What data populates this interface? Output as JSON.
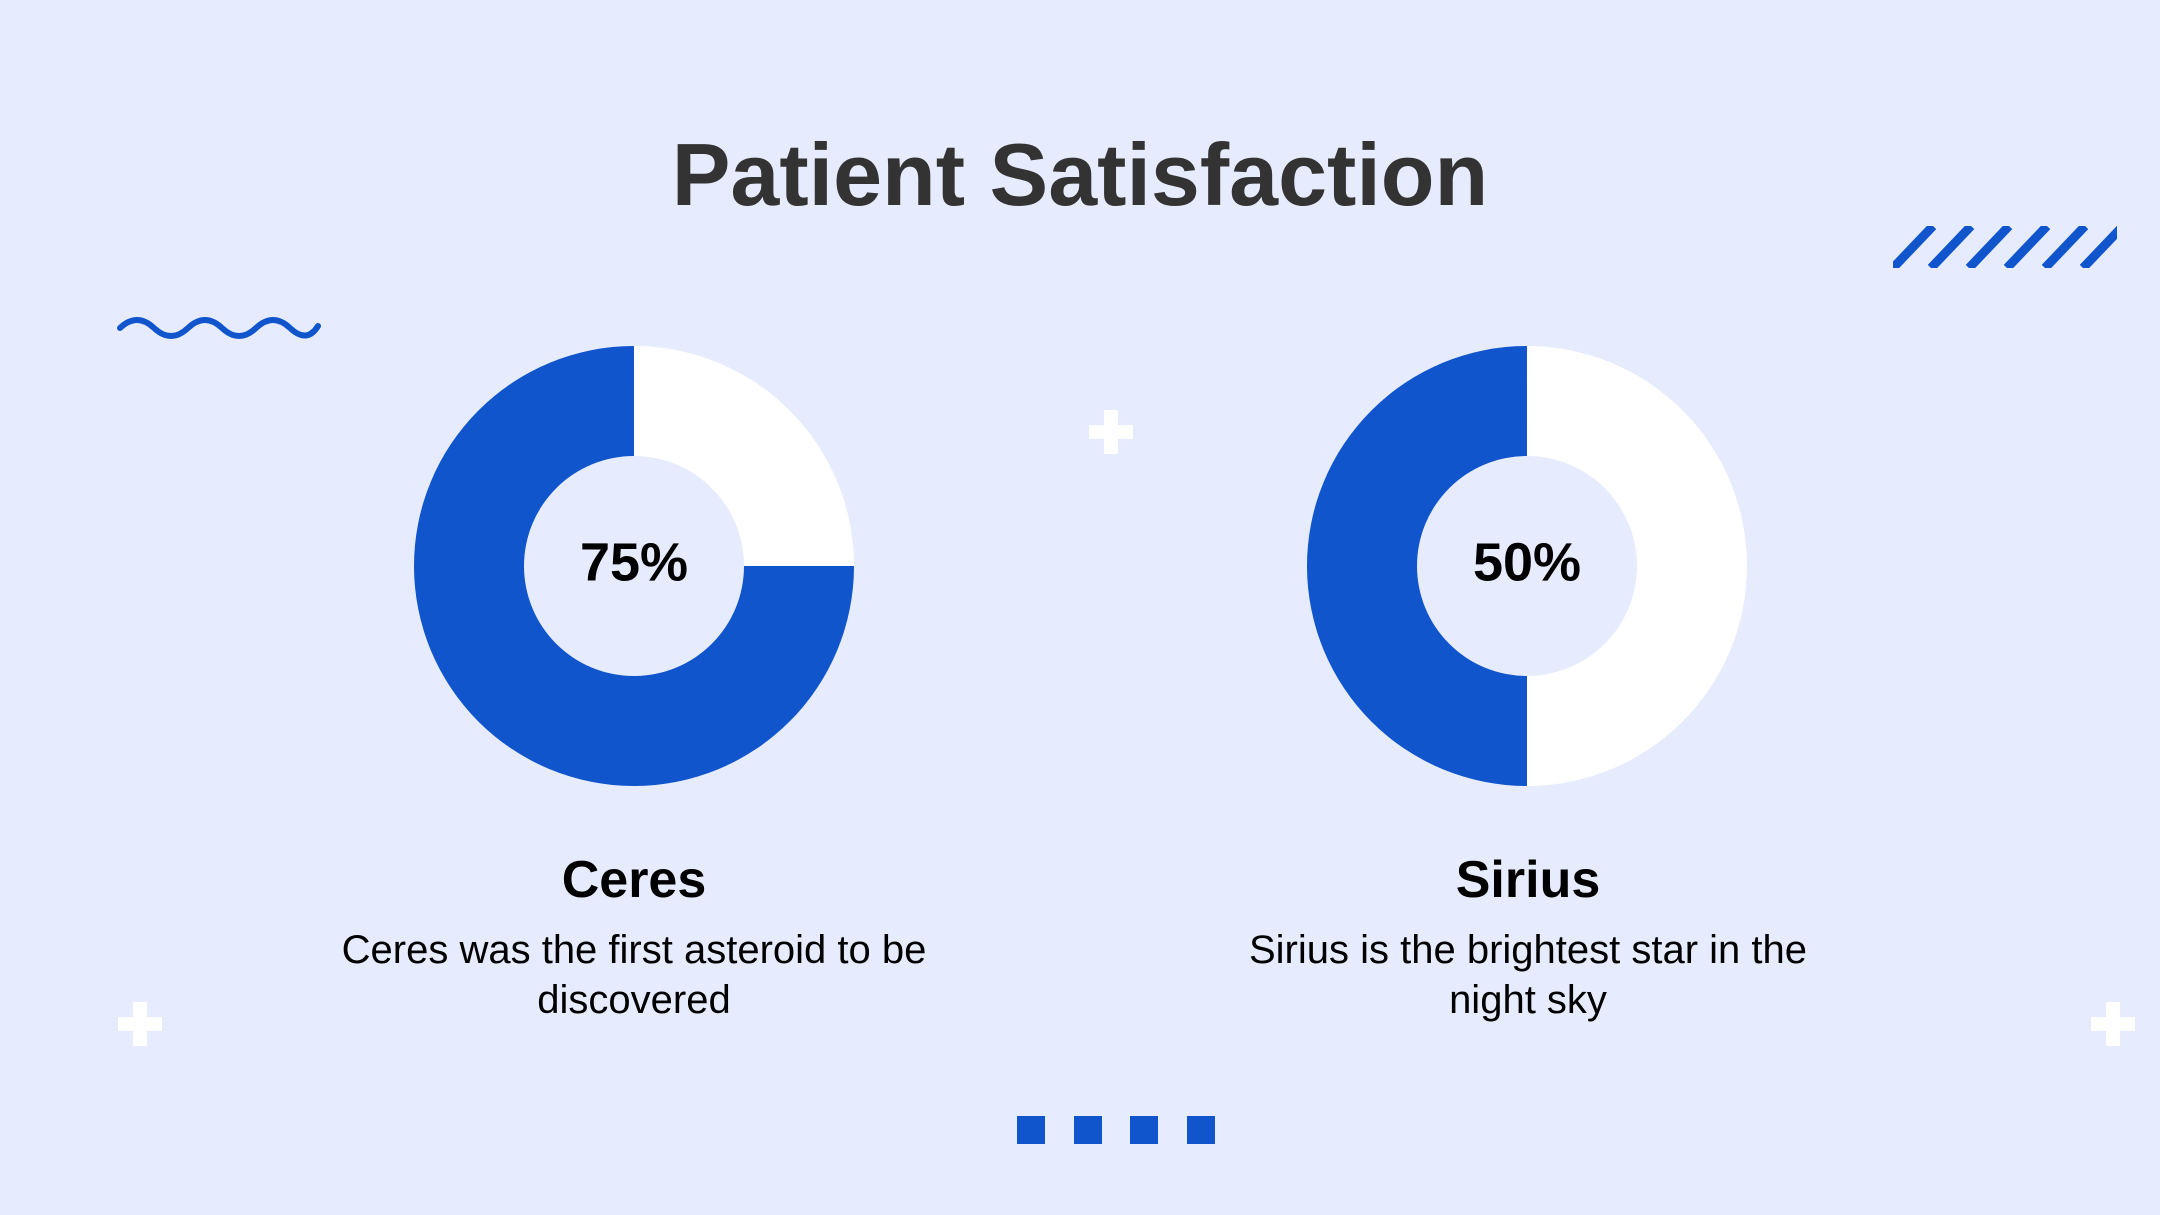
{
  "title": "Patient Satisfaction",
  "colors": {
    "accent": "#1155cc",
    "ring_remainder": "#ffffff",
    "background": "#e6ecfd",
    "title_text": "#333333",
    "deco_cross": "#ffffff"
  },
  "chart_data": [
    {
      "type": "pie",
      "title": "Ceres",
      "categories": [
        "Ceres",
        ""
      ],
      "values": [
        75,
        25
      ],
      "center_label": "75%",
      "description": "Ceres was the first asteroid to be discovered"
    },
    {
      "type": "pie",
      "title": "Sirius",
      "categories": [
        "Sirius",
        ""
      ],
      "values": [
        50,
        50
      ],
      "center_label": "50%",
      "description": "Sirius is the brightest star in the night sky"
    }
  ],
  "decorations": {
    "wave": "wave-squiggle",
    "stripes": "diagonal-stripes",
    "crosses": "plus-shape",
    "squares": "square-dots"
  }
}
